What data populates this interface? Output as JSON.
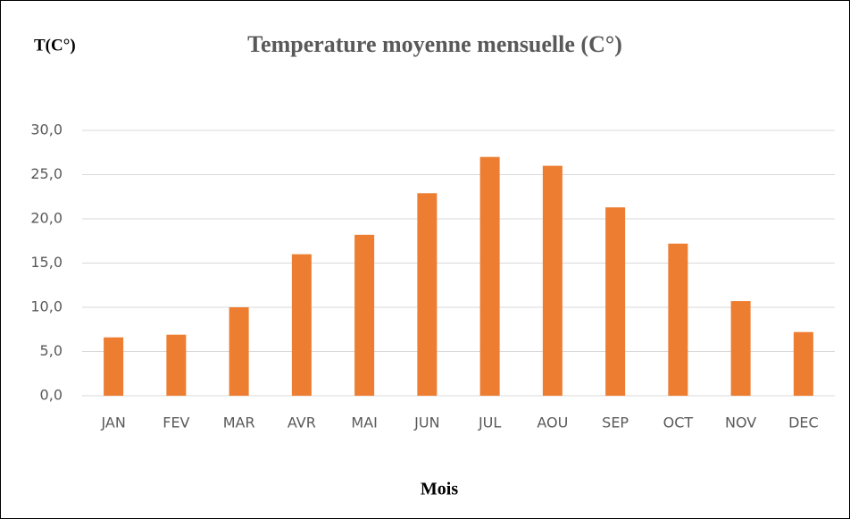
{
  "chart_data": {
    "type": "bar",
    "title": "Temperature moyenne mensuelle (C°)",
    "y_label": "T(C°)",
    "x_label": "Mois",
    "categories": [
      "JAN",
      "FEV",
      "MAR",
      "AVR",
      "MAI",
      "JUN",
      "JUL",
      "AOU",
      "SEP",
      "OCT",
      "NOV",
      "DEC"
    ],
    "values": [
      6.6,
      6.9,
      10.0,
      16.0,
      18.2,
      22.9,
      27.0,
      26.0,
      21.3,
      17.2,
      10.7,
      7.2
    ],
    "color": "#ed7d31",
    "ylim": [
      0,
      30
    ],
    "yticks": [
      {
        "value": 0,
        "label": "0,0"
      },
      {
        "value": 5,
        "label": "5,0"
      },
      {
        "value": 10,
        "label": "10,0"
      },
      {
        "value": 15,
        "label": "15,0"
      },
      {
        "value": 20,
        "label": "20,0"
      },
      {
        "value": 25,
        "label": "25,0"
      },
      {
        "value": 30,
        "label": "30,0"
      }
    ],
    "grid": true
  }
}
